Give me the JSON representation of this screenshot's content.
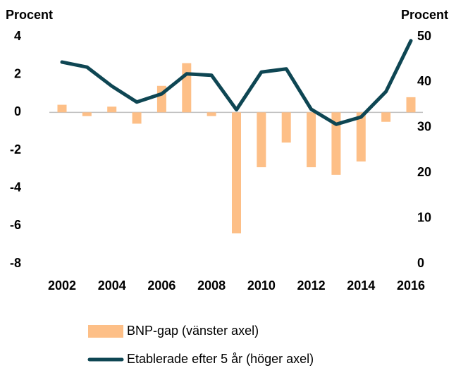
{
  "chart_data": {
    "type": "bar-line",
    "ylabel": "Procent",
    "y2label": "Procent",
    "categories": [
      "2002",
      null,
      "2004",
      null,
      "2006",
      null,
      "2008",
      null,
      "2010",
      null,
      "2012",
      null,
      "2014",
      null,
      "2016"
    ],
    "series": [
      {
        "name": "BNP-gap (vänster axel)",
        "type": "bar",
        "color": "#fdbf87",
        "values": [
          0.4,
          -0.2,
          0.3,
          -0.6,
          1.4,
          2.6,
          -0.2,
          -6.4,
          -2.9,
          -1.6,
          -2.9,
          -3.3,
          -2.6,
          -0.5,
          0.8
        ]
      },
      {
        "name": "Etablerade efter 5 år (höger axel)",
        "type": "line",
        "axis": "y2",
        "color": "#0e4653",
        "values": [
          44.4,
          43.3,
          39.1,
          35.6,
          37.4,
          41.8,
          41.5,
          33.9,
          42.2,
          42.9,
          34.0,
          30.7,
          32.3,
          37.9,
          49.1
        ]
      }
    ],
    "ylim": [
      -8,
      4
    ],
    "yticks": [
      -8,
      -6,
      -4,
      -2,
      0,
      2,
      4
    ],
    "y2lim": [
      0,
      50
    ],
    "y2ticks": [
      0,
      10,
      20,
      30,
      40,
      50
    ],
    "grid": false,
    "legend": "bottom"
  }
}
